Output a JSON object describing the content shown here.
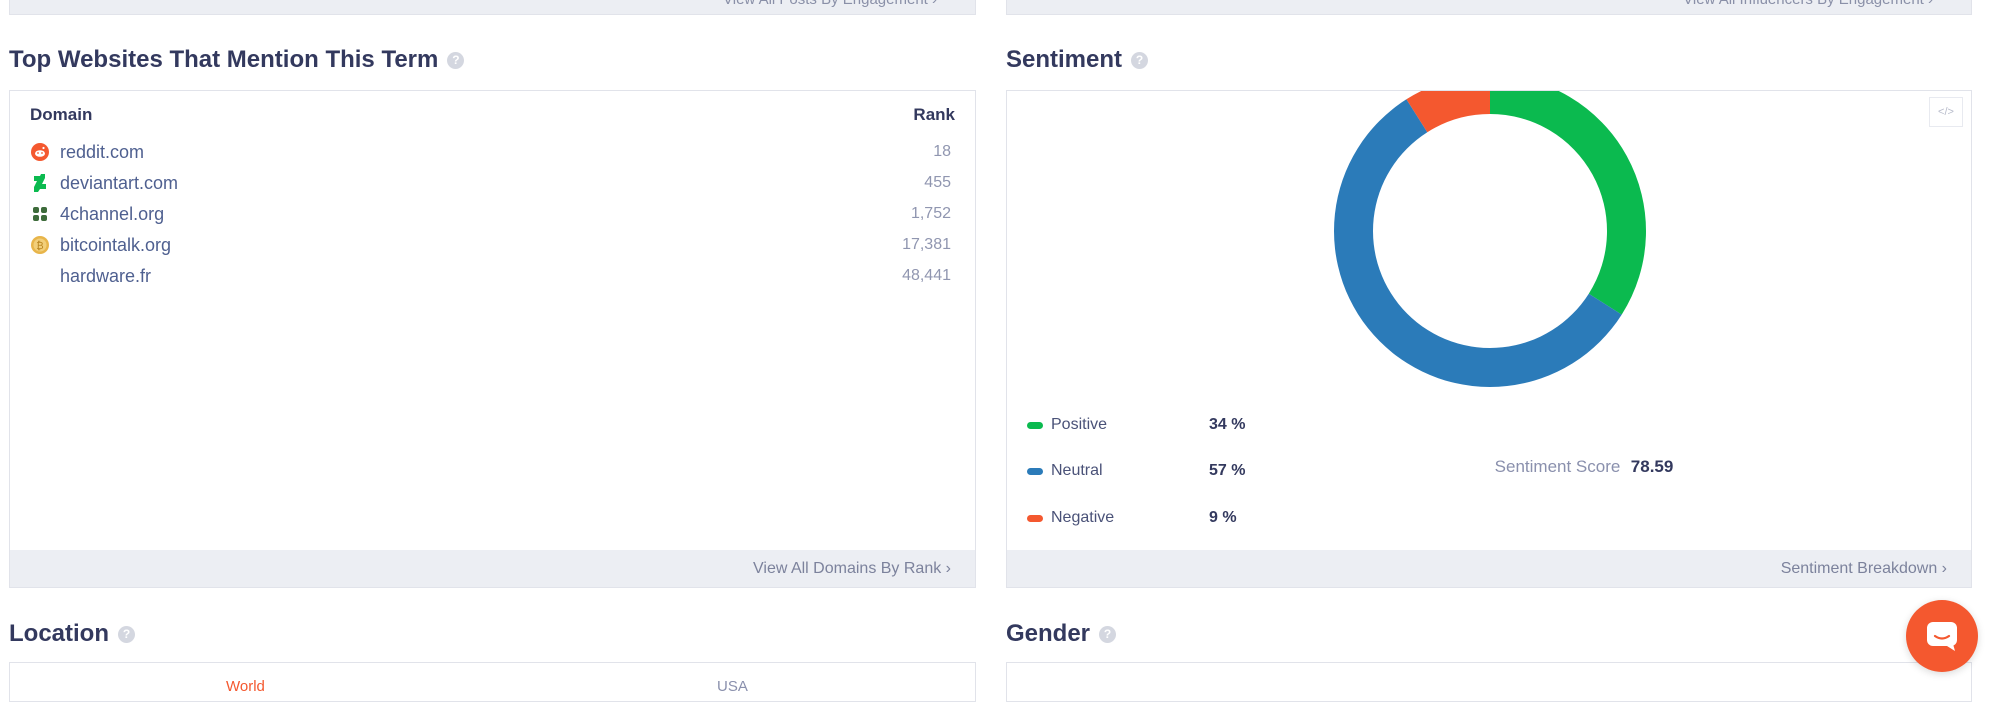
{
  "top_links": {
    "left": "View All Posts By Engagement  ›",
    "right": "View All Influencers By Engagement  ›"
  },
  "websites": {
    "title": "Top Websites That Mention This Term",
    "help": "?",
    "col_domain": "Domain",
    "col_rank": "Rank",
    "rows": [
      {
        "domain": "reddit.com",
        "rank": "18",
        "icon": "reddit-icon"
      },
      {
        "domain": "deviantart.com",
        "rank": "455",
        "icon": "deviantart-icon"
      },
      {
        "domain": "4channel.org",
        "rank": "1,752",
        "icon": "4channel-icon"
      },
      {
        "domain": "bitcointalk.org",
        "rank": "17,381",
        "icon": "bitcoin-icon"
      },
      {
        "domain": "hardware.fr",
        "rank": "48,441",
        "icon": ""
      }
    ],
    "footer_link": "View All Domains By Rank  ›"
  },
  "sentiment": {
    "title": "Sentiment",
    "help": "?",
    "embed": "</>",
    "legend": [
      {
        "label": "Positive",
        "value": "34 %",
        "color": "#0bba4f"
      },
      {
        "label": "Neutral",
        "value": "57 %",
        "color": "#2b7bb9"
      },
      {
        "label": "Negative",
        "value": "9 %",
        "color": "#f4582f"
      }
    ],
    "score_label": "Sentiment Score",
    "score_value": "78.59",
    "footer_link": "Sentiment Breakdown  ›"
  },
  "chart_data": {
    "type": "pie",
    "categories": [
      "Positive",
      "Neutral",
      "Negative"
    ],
    "values": [
      34,
      57,
      9
    ],
    "colors": [
      "#0bba4f",
      "#2b7bb9",
      "#f4582f"
    ],
    "donut": true
  },
  "location": {
    "title": "Location",
    "help": "?",
    "tabs": [
      "World",
      "USA"
    ]
  },
  "gender": {
    "title": "Gender",
    "help": "?"
  }
}
